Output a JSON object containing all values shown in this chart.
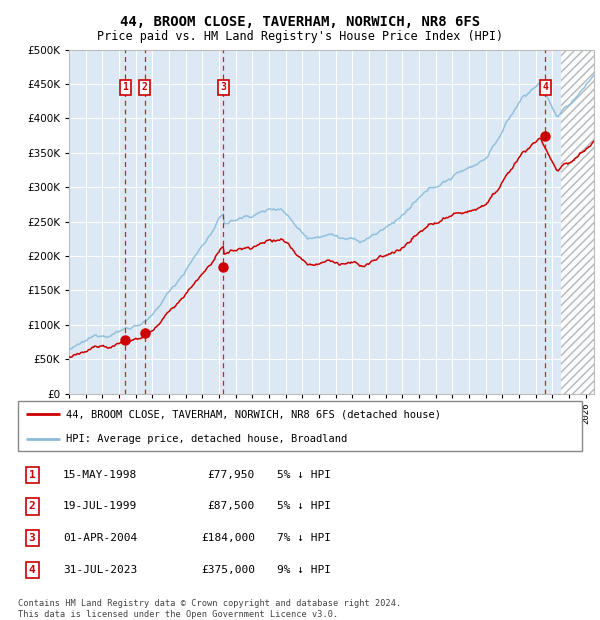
{
  "title": "44, BROOM CLOSE, TAVERHAM, NORWICH, NR8 6FS",
  "subtitle": "Price paid vs. HM Land Registry's House Price Index (HPI)",
  "plot_bg_color": "#dce9f5",
  "hpi_line_color": "#8bbcda",
  "price_line_color": "#cc0000",
  "marker_color": "#cc0000",
  "vline_color_dash": "#cc0000",
  "ylim": [
    0,
    500000
  ],
  "yticks": [
    0,
    50000,
    100000,
    150000,
    200000,
    250000,
    300000,
    350000,
    400000,
    450000,
    500000
  ],
  "xlim_start": 1995.0,
  "xlim_end": 2026.5,
  "purchases": [
    {
      "year": 1998.37,
      "price": 77950,
      "label": "1"
    },
    {
      "year": 1999.54,
      "price": 87500,
      "label": "2"
    },
    {
      "year": 2004.25,
      "price": 184000,
      "label": "3"
    },
    {
      "year": 2023.58,
      "price": 375000,
      "label": "4"
    }
  ],
  "table_rows": [
    {
      "num": "1",
      "date": "15-MAY-1998",
      "price": "£77,950",
      "pct": "5% ↓ HPI"
    },
    {
      "num": "2",
      "date": "19-JUL-1999",
      "price": "£87,500",
      "pct": "5% ↓ HPI"
    },
    {
      "num": "3",
      "date": "01-APR-2004",
      "price": "£184,000",
      "pct": "7% ↓ HPI"
    },
    {
      "num": "4",
      "date": "31-JUL-2023",
      "price": "£375,000",
      "pct": "9% ↓ HPI"
    }
  ],
  "legend_entries": [
    "44, BROOM CLOSE, TAVERHAM, NORWICH, NR8 6FS (detached house)",
    "HPI: Average price, detached house, Broadland"
  ],
  "footnote": "Contains HM Land Registry data © Crown copyright and database right 2024.\nThis data is licensed under the Open Government Licence v3.0.",
  "grid_color": "#ffffff",
  "label_box_color": "#cc0000",
  "future_start": 2024.5
}
